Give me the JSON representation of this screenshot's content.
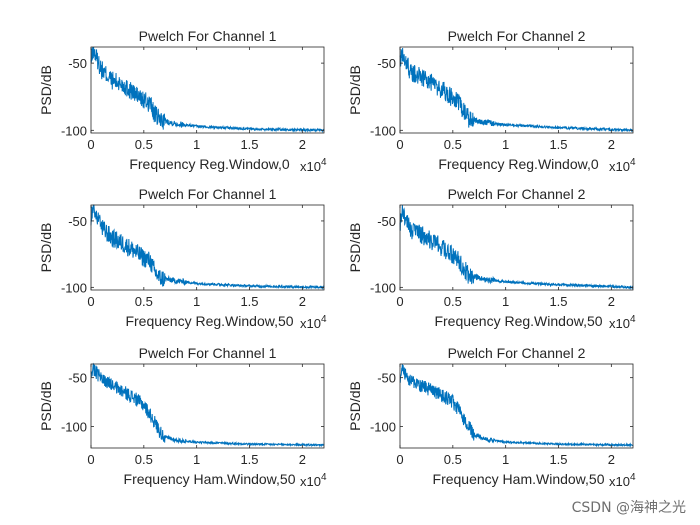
{
  "watermark": "CSDN @海神之光",
  "chart_data": [
    {
      "type": "line",
      "title": "Pwelch For Channel 1",
      "xlabel": "Frequency   Reg.Window,0",
      "ylabel": "PSD/dB",
      "xlim": [
        0,
        22050
      ],
      "ylim": [
        -102,
        -38
      ],
      "x_exponent_label": "x10^4",
      "xticks": [
        0,
        5000,
        10000,
        15000,
        20000
      ],
      "xtick_labels": [
        "0",
        "0.5",
        "1",
        "1.5",
        "2"
      ],
      "yticks": [
        -100,
        -50
      ],
      "ytick_labels": [
        "-100",
        "-50"
      ],
      "series": [
        {
          "name": "PSD",
          "color": "#0072BD",
          "envelope_x": [
            0,
            200,
            1000,
            2000,
            3000,
            4000,
            5000,
            5600,
            6000,
            6500,
            8000,
            10000,
            15000,
            22050
          ],
          "envelope_y": [
            -50,
            -40,
            -55,
            -63,
            -66,
            -72,
            -78,
            -80,
            -88,
            -92,
            -95,
            -97,
            -99,
            -100
          ]
        }
      ]
    },
    {
      "type": "line",
      "title": "Pwelch For Channel 2",
      "xlabel": "Frequency   Reg.Window,0",
      "ylabel": "PSD/dB",
      "xlim": [
        0,
        22050
      ],
      "ylim": [
        -102,
        -38
      ],
      "x_exponent_label": "x10^4",
      "xticks": [
        0,
        5000,
        10000,
        15000,
        20000
      ],
      "xtick_labels": [
        "0",
        "0.5",
        "1",
        "1.5",
        "2"
      ],
      "yticks": [
        -100,
        -50
      ],
      "ytick_labels": [
        "-100",
        "-50"
      ],
      "series": [
        {
          "name": "PSD",
          "color": "#0072BD",
          "envelope_x": [
            0,
            200,
            1000,
            2000,
            3000,
            4000,
            5000,
            5600,
            6000,
            6500,
            8000,
            10000,
            15000,
            22050
          ],
          "envelope_y": [
            -52,
            -42,
            -57,
            -60,
            -65,
            -70,
            -76,
            -80,
            -85,
            -91,
            -94,
            -96,
            -98,
            -100
          ]
        }
      ]
    },
    {
      "type": "line",
      "title": "Pwelch For Channel 1",
      "xlabel": "Frequency   Reg.Window,50",
      "ylabel": "PSD/dB",
      "xlim": [
        0,
        22050
      ],
      "ylim": [
        -102,
        -38
      ],
      "x_exponent_label": "x10^4",
      "xticks": [
        0,
        5000,
        10000,
        15000,
        20000
      ],
      "xtick_labels": [
        "0",
        "0.5",
        "1",
        "1.5",
        "2"
      ],
      "yticks": [
        -100,
        -50
      ],
      "ytick_labels": [
        "-100",
        "-50"
      ],
      "series": [
        {
          "name": "PSD",
          "color": "#0072BD",
          "envelope_x": [
            0,
            200,
            1000,
            2000,
            3000,
            4000,
            5000,
            5600,
            6000,
            6500,
            8000,
            10000,
            15000,
            22050
          ],
          "envelope_y": [
            -50,
            -40,
            -55,
            -63,
            -67,
            -72,
            -78,
            -80,
            -88,
            -93,
            -95,
            -97,
            -99,
            -100
          ]
        }
      ]
    },
    {
      "type": "line",
      "title": "Pwelch For Channel 2",
      "xlabel": "Frequency   Reg.Window,50",
      "ylabel": "PSD/dB",
      "xlim": [
        0,
        22050
      ],
      "ylim": [
        -102,
        -38
      ],
      "x_exponent_label": "x10^4",
      "xticks": [
        0,
        5000,
        10000,
        15000,
        20000
      ],
      "xtick_labels": [
        "0",
        "0.5",
        "1",
        "1.5",
        "2"
      ],
      "yticks": [
        -100,
        -50
      ],
      "ytick_labels": [
        "-100",
        "-50"
      ],
      "series": [
        {
          "name": "PSD",
          "color": "#0072BD",
          "envelope_x": [
            0,
            200,
            1000,
            2000,
            3000,
            4000,
            5000,
            5600,
            6000,
            6500,
            8000,
            10000,
            15000,
            22050
          ],
          "envelope_y": [
            -52,
            -42,
            -57,
            -60,
            -65,
            -70,
            -76,
            -80,
            -85,
            -91,
            -94,
            -96,
            -98,
            -100
          ]
        }
      ]
    },
    {
      "type": "line",
      "title": "Pwelch For Channel 1",
      "xlabel": "Frequency   Ham.Window,50",
      "ylabel": "PSD/dB",
      "xlim": [
        0,
        22050
      ],
      "ylim": [
        -122,
        -36
      ],
      "x_exponent_label": "x10^4",
      "xticks": [
        0,
        5000,
        10000,
        15000,
        20000
      ],
      "xtick_labels": [
        "0",
        "0.5",
        "1",
        "1.5",
        "2"
      ],
      "yticks": [
        -100,
        -50
      ],
      "ytick_labels": [
        "-100",
        "-50"
      ],
      "series": [
        {
          "name": "PSD",
          "color": "#0072BD",
          "envelope_x": [
            0,
            200,
            1000,
            2000,
            3000,
            4000,
            5000,
            5600,
            6000,
            6500,
            7000,
            8000,
            10000,
            15000,
            22050
          ],
          "envelope_y": [
            -48,
            -40,
            -52,
            -58,
            -64,
            -70,
            -78,
            -88,
            -95,
            -105,
            -111,
            -114,
            -116,
            -118,
            -119
          ]
        }
      ]
    },
    {
      "type": "line",
      "title": "Pwelch For Channel 2",
      "xlabel": "Frequency   Ham.Window,50",
      "ylabel": "PSD/dB",
      "xlim": [
        0,
        22050
      ],
      "ylim": [
        -122,
        -36
      ],
      "x_exponent_label": "x10^4",
      "xticks": [
        0,
        5000,
        10000,
        15000,
        20000
      ],
      "xtick_labels": [
        "0",
        "0.5",
        "1",
        "1.5",
        "2"
      ],
      "yticks": [
        -100,
        -50
      ],
      "ytick_labels": [
        "-100",
        "-50"
      ],
      "series": [
        {
          "name": "PSD",
          "color": "#0072BD",
          "envelope_x": [
            0,
            200,
            1000,
            2000,
            3000,
            4000,
            5000,
            5600,
            6000,
            6500,
            7000,
            8000,
            10000,
            15000,
            22050
          ],
          "envelope_y": [
            -50,
            -42,
            -54,
            -58,
            -63,
            -68,
            -75,
            -84,
            -92,
            -100,
            -108,
            -113,
            -116,
            -118,
            -119
          ]
        }
      ]
    }
  ]
}
